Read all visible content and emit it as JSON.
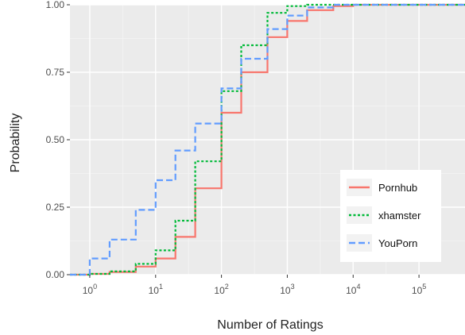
{
  "chart_data": {
    "type": "line",
    "title": "",
    "xlabel": "Number of Ratings",
    "ylabel": "Probability",
    "x_scale": "log10",
    "xlim": [
      0.5,
      500000
    ],
    "ylim": [
      0,
      1
    ],
    "x_ticks": [
      {
        "value": 1,
        "label": "10",
        "exp": "0"
      },
      {
        "value": 10,
        "label": "10",
        "exp": "1"
      },
      {
        "value": 100,
        "label": "10",
        "exp": "2"
      },
      {
        "value": 1000,
        "label": "10",
        "exp": "3"
      },
      {
        "value": 10000,
        "label": "10",
        "exp": "4"
      },
      {
        "value": 100000,
        "label": "10",
        "exp": "5"
      }
    ],
    "y_ticks": [
      {
        "value": 0,
        "label": "0.00"
      },
      {
        "value": 0.25,
        "label": "0.25"
      },
      {
        "value": 0.5,
        "label": "0.50"
      },
      {
        "value": 0.75,
        "label": "0.75"
      },
      {
        "value": 1,
        "label": "1.00"
      }
    ],
    "grid": true,
    "panel_background": "#ebebeb",
    "legend_position": "bottom-right",
    "series": [
      {
        "name": "Pornhub",
        "color": "#f8766d",
        "dash": "solid",
        "x": [
          0.5,
          1,
          2,
          5,
          10,
          20,
          40,
          100,
          200,
          500,
          1000,
          2000,
          5000,
          10000,
          100000,
          500000
        ],
        "y": [
          0,
          0.003,
          0.01,
          0.03,
          0.06,
          0.14,
          0.32,
          0.6,
          0.75,
          0.88,
          0.94,
          0.98,
          0.995,
          1,
          1,
          1
        ]
      },
      {
        "name": "xhamster",
        "color": "#00ba38",
        "dash": "dotted",
        "x": [
          0.5,
          1,
          2,
          5,
          10,
          20,
          40,
          100,
          200,
          500,
          1000,
          2000,
          5000,
          10000,
          100000,
          500000
        ],
        "y": [
          0,
          0.003,
          0.012,
          0.04,
          0.09,
          0.2,
          0.42,
          0.68,
          0.85,
          0.97,
          0.995,
          1,
          1,
          1,
          1,
          1
        ]
      },
      {
        "name": "YouPorn",
        "color": "#619cff",
        "dash": "dashed",
        "x": [
          0.5,
          1,
          2,
          5,
          10,
          20,
          40,
          100,
          200,
          500,
          1000,
          2000,
          5000,
          10000,
          100000,
          500000
        ],
        "y": [
          0,
          0.06,
          0.13,
          0.24,
          0.35,
          0.46,
          0.56,
          0.69,
          0.8,
          0.91,
          0.96,
          0.99,
          1,
          1,
          1,
          1
        ]
      }
    ]
  }
}
